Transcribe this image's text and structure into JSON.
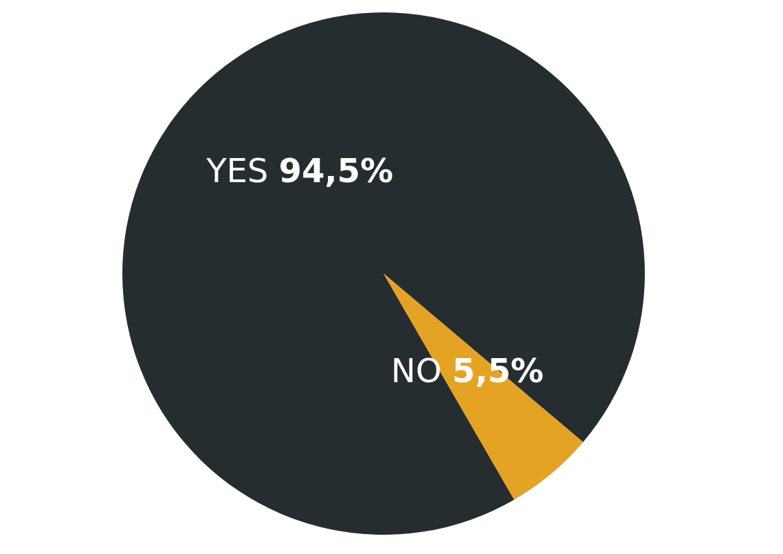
{
  "chart_data": {
    "type": "pie",
    "categories": [
      "YES",
      "NO"
    ],
    "values": [
      94.5,
      5.5
    ],
    "colors": [
      "#262d30",
      "#e5a323"
    ],
    "value_labels": [
      "94,5%",
      "5,5%"
    ],
    "legend": false
  }
}
